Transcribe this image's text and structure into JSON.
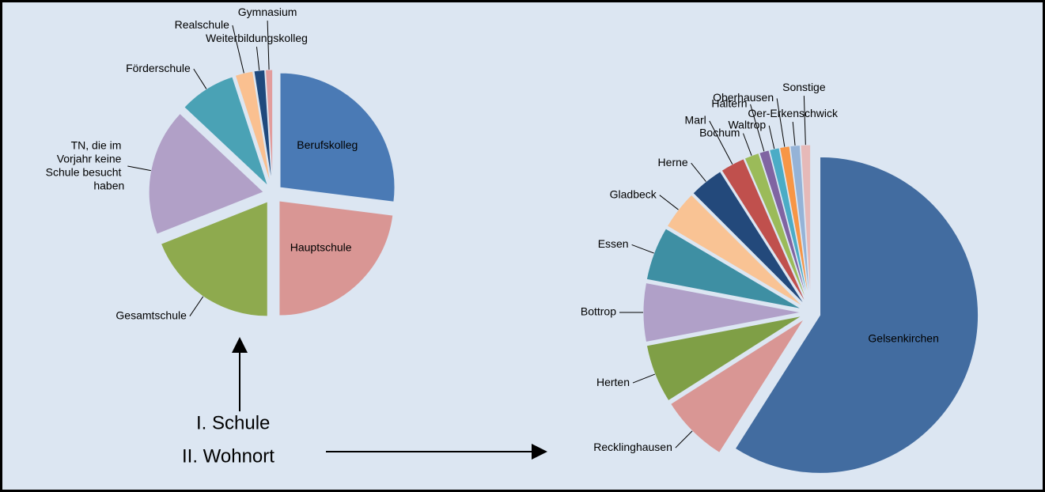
{
  "chart_data": [
    {
      "type": "pie",
      "categories": [
        "Berufskolleg",
        "Hauptschule",
        "Gesamtschule",
        "TN, die im Vorjahr keine Schule besucht haben",
        "Förderschule",
        "Realschule",
        "Weiterbildungskolleg",
        "Gymnasium"
      ],
      "values": [
        27,
        23,
        19,
        18,
        8,
        2.5,
        1.5,
        1
      ],
      "colors": [
        "#4a7ab5",
        "#d99694",
        "#8eaa4e",
        "#b1a0c7",
        "#4aa2b5",
        "#fac090",
        "#1f497d",
        "#e29c9c"
      ]
    },
    {
      "type": "pie",
      "categories": [
        "Gelsenkirchen",
        "Recklinghausen",
        "Herten",
        "Bottrop",
        "Essen",
        "Gladbeck",
        "Herne",
        "Marl",
        "Bochum",
        "Haltern",
        "Waltrop",
        "Oberhausen",
        "Oer-Erkenschwick",
        "Sonstige"
      ],
      "values": [
        59,
        7,
        6,
        6,
        5.5,
        4,
        3.5,
        2.5,
        1.5,
        1,
        1,
        1,
        1,
        1
      ],
      "colors": [
        "#426ca0",
        "#d99694",
        "#7f9f46",
        "#b0a0c8",
        "#3e8fa3",
        "#f9c394",
        "#23497b",
        "#c0504d",
        "#9bbb59",
        "#8064a2",
        "#4bacc6",
        "#f79646",
        "#95b3d7",
        "#e6b9b8"
      ]
    }
  ],
  "annotations": [
    "I. Schule",
    "II. Wohnort"
  ]
}
